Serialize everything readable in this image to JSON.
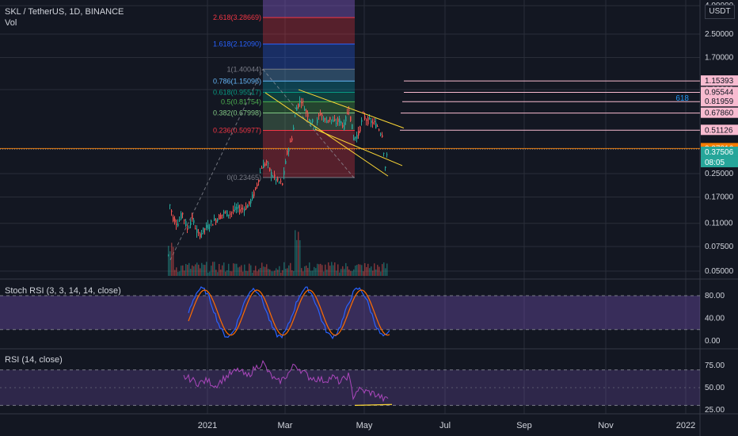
{
  "header": {
    "symbol": "SKL / TetherUS, 1D, BINANCE",
    "volume_label": "Vol",
    "unit": "USDT"
  },
  "price_axis": {
    "scale": "log",
    "ticks": [
      "4.00000",
      "2.50000",
      "1.70000",
      "1.00000",
      "0.25000",
      "0.17000",
      "0.11000",
      "0.07500",
      "0.05000"
    ],
    "tick_values": [
      4.0,
      2.5,
      1.7,
      1.0,
      0.25,
      0.17,
      0.11,
      0.075,
      0.05
    ],
    "badges": [
      {
        "label": "1.15393",
        "value": 1.15393,
        "color": "#f8bbd0",
        "text": "#131722"
      },
      {
        "label": "0.95544",
        "value": 0.95544,
        "color": "#f8bbd0",
        "text": "#131722"
      },
      {
        "label": "0.81959",
        "value": 0.81959,
        "color": "#f8bbd0",
        "text": "#131722"
      },
      {
        "label": "0.67860",
        "value": 0.6786,
        "color": "#f8bbd0",
        "text": "#131722"
      },
      {
        "label": "0.51126",
        "value": 0.51126,
        "color": "#f8bbd0",
        "text": "#131722"
      },
      {
        "label": "0.37816",
        "value": 0.37816,
        "color": "#f57c00",
        "text": "#ffffff"
      },
      {
        "label": "0.37506",
        "value": 0.37506,
        "color": "#26a69a",
        "text": "#ffffff"
      }
    ],
    "countdown": "08:05"
  },
  "time_axis": {
    "labels": [
      "2021",
      "Mar",
      "May",
      "Jul",
      "Sep",
      "Nov",
      "2022"
    ]
  },
  "fib": {
    "levels": [
      {
        "label": "2.618(3.28669)",
        "value": 3.28669,
        "color": "#f23645"
      },
      {
        "label": "1.618(2.12090)",
        "value": 2.1209,
        "color": "#2962ff"
      },
      {
        "label": "1(1.40044)",
        "value": 1.40044,
        "color": "#787b86"
      },
      {
        "label": "0.786(1.15096)",
        "value": 1.15096,
        "color": "#64b5f6"
      },
      {
        "label": "0.618(0.95517)",
        "value": 0.95517,
        "color": "#089981"
      },
      {
        "label": "0.5(0.81754)",
        "value": 0.81754,
        "color": "#4caf50"
      },
      {
        "label": "0.382(0.67998)",
        "value": 0.67998,
        "color": "#81c784"
      },
      {
        "label": "0.236(0.50977)",
        "value": 0.50977,
        "color": "#f23645"
      },
      {
        "label": "0(0.23465)",
        "value": 0.23465,
        "color": "#787b86"
      }
    ]
  },
  "annotation_text": "618",
  "stoch": {
    "title": "Stoch RSI (3, 3, 14, 14, close)",
    "ticks": [
      "80.00",
      "40.00",
      "0.00"
    ],
    "tick_values": [
      80,
      40,
      0
    ]
  },
  "rsi": {
    "title": "RSI (14, close)",
    "ticks": [
      "75.00",
      "50.00",
      "25.00"
    ],
    "tick_values": [
      75,
      50,
      25
    ]
  },
  "colors": {
    "up": "#26a69a",
    "down": "#ef5350",
    "trend": "#fdd835",
    "purple": "#7e57c2"
  },
  "chart_data": {
    "type": "candlestick",
    "title": "SKL / TetherUS, 1D, BINANCE",
    "yscale": "log",
    "x_labels": [
      "2021",
      "Mar",
      "May",
      "Jul",
      "Sep",
      "Nov",
      "2022"
    ],
    "ohlc_approx": [
      {
        "date": "2020-12",
        "low": 0.06,
        "high": 0.17
      },
      {
        "date": "2021-01",
        "low": 0.08,
        "high": 0.13
      },
      {
        "date": "2021-02",
        "low": 0.12,
        "high": 0.3
      },
      {
        "date": "2021-02-28",
        "low": 0.19,
        "high": 0.36
      },
      {
        "date": "2021-03",
        "low": 0.38,
        "high": 1.15
      },
      {
        "date": "2021-04",
        "low": 0.5,
        "high": 0.8
      },
      {
        "date": "2021-05",
        "low": 0.23,
        "high": 0.68
      }
    ],
    "last_price": 0.37506
  }
}
